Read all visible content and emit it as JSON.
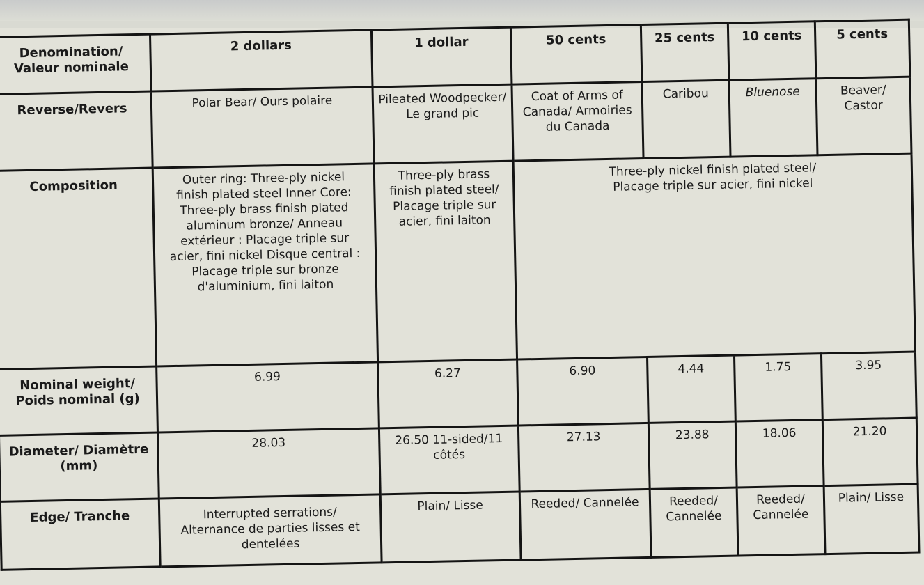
{
  "rows": {
    "denomination": {
      "label": "Denomination/ Valeur nominale",
      "values": [
        "2 dollars",
        "1 dollar",
        "50 cents",
        "25 cents",
        "10 cents",
        "5 cents"
      ]
    },
    "reverse": {
      "label": "Reverse/Revers",
      "values": [
        "Polar Bear/ Ours polaire",
        "Pileated Woodpecker/ Le grand pic",
        "Coat of Arms of Canada/ Armoiries du Canada",
        "Caribou",
        "Bluenose",
        "Beaver/ Castor"
      ]
    },
    "composition": {
      "label": "Composition",
      "values": [
        "Outer ring: Three-ply nickel finish plated steel Inner Core: Three-ply brass finish plated aluminum bronze/ Anneau extérieur : Placage triple sur acier, fini nickel Disque central : Placage triple sur bronze d'aluminium, fini laiton",
        "Three-ply brass finish plated steel/ Placage triple sur acier, fini laiton",
        "Three-ply nickel finish plated steel/ Placage triple sur acier, fini nickel"
      ]
    },
    "weight": {
      "label": "Nominal weight/ Poids nominal (g)",
      "values": [
        "6.99",
        "6.27",
        "6.90",
        "4.44",
        "1.75",
        "3.95"
      ]
    },
    "diameter": {
      "label": "Diameter/ Diamètre (mm)",
      "values": [
        "28.03",
        "26.50 11-sided/11 côtés",
        "27.13",
        "23.88",
        "18.06",
        "21.20"
      ]
    },
    "edge": {
      "label": "Edge/ Tranche",
      "values": [
        "Interrupted serrations/ Alternance de parties lisses et dentelées",
        "Plain/ Lisse",
        "Reeded/ Cannelée",
        "Reeded/ Cannelée",
        "Reeded/ Cannelée",
        "Plain/ Lisse"
      ]
    }
  }
}
